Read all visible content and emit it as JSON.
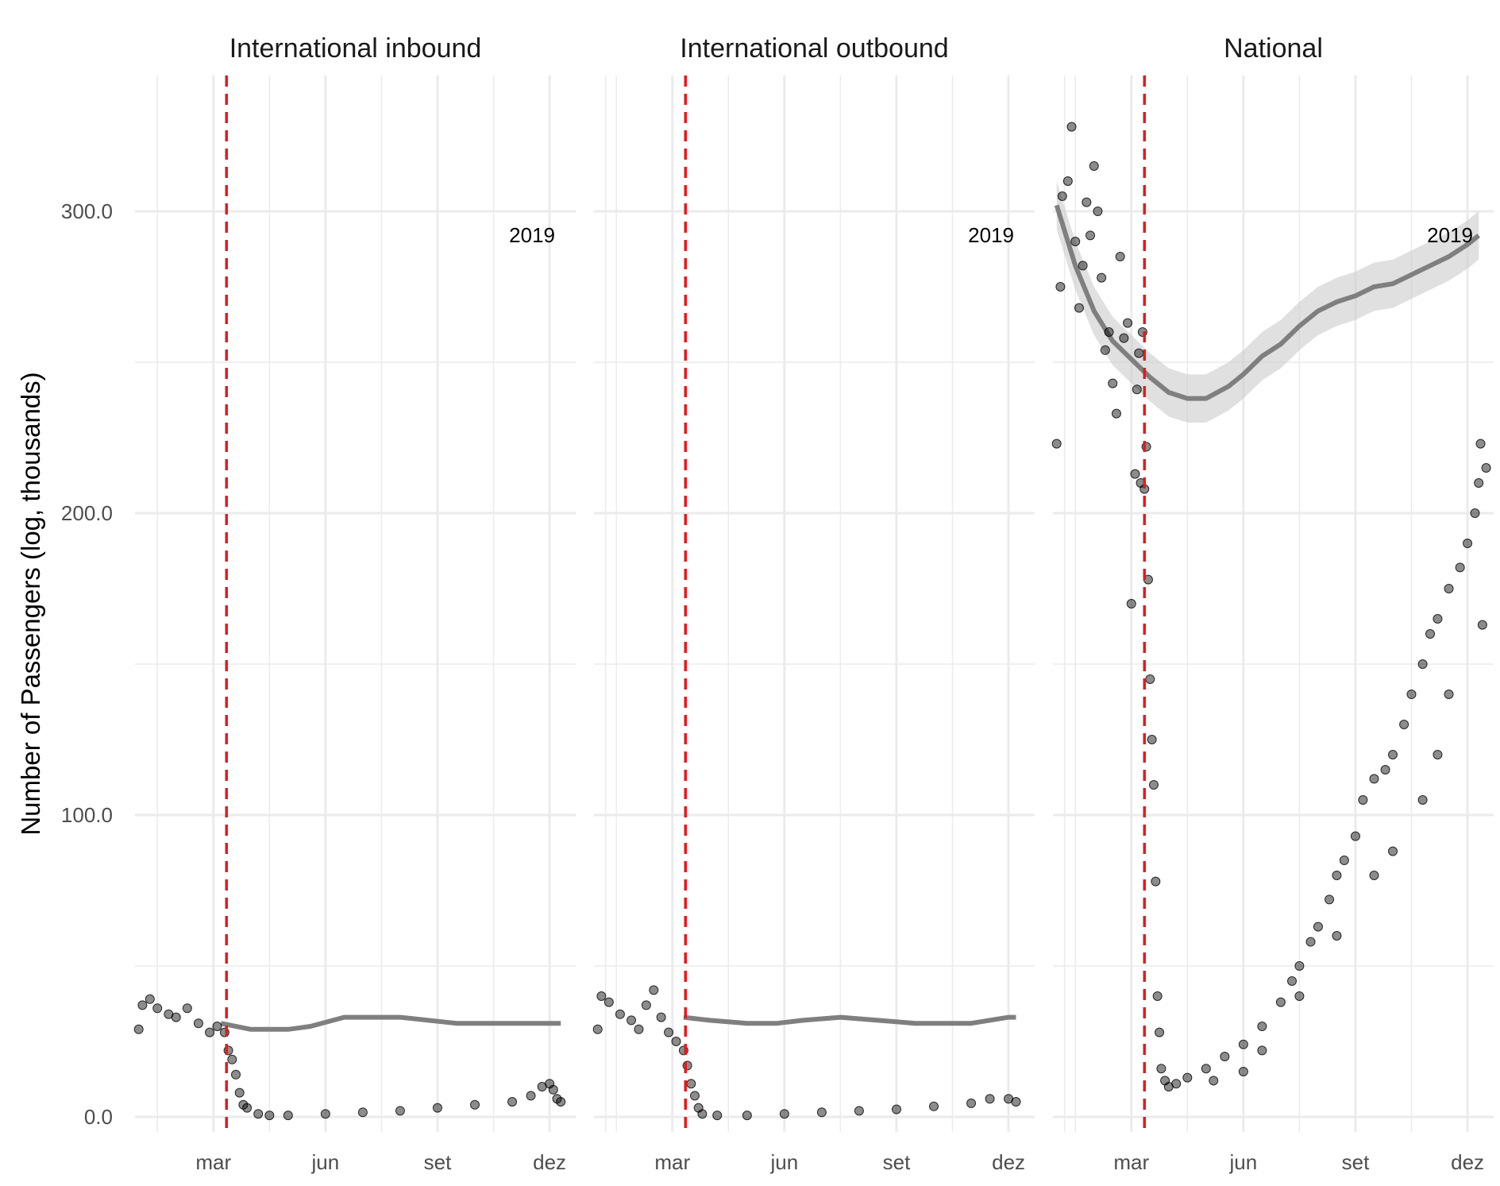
{
  "chart_data": {
    "type": "scatter",
    "ylabel": "Number of Passengers (log, thousands)",
    "xlabel": "",
    "y_ticks": [
      0,
      100,
      200,
      300
    ],
    "y_tick_labels": [
      "0.0",
      "100.0",
      "200.0",
      "300.0"
    ],
    "ylim": [
      -5,
      345
    ],
    "x_ticks": [
      2.0,
      5.0,
      8.0,
      11.0
    ],
    "x_tick_labels": [
      "mar",
      "jun",
      "set",
      "dez"
    ],
    "xlim": [
      -0.1,
      11.7
    ],
    "x_unit": "month of year (0 = start of January)",
    "reference_line": {
      "x": 2.35,
      "color": "#e41a1c",
      "style": "dashed"
    },
    "grid": true,
    "annotation_position": "top-right",
    "colors": {
      "points": "#000000",
      "smooth_2019": "#7f7f7f",
      "band": "#cccccc",
      "vline": "#e41a1c",
      "grid": "#ebebeb"
    },
    "panels": [
      {
        "title": "International inbound",
        "annotation": "2019",
        "smooth_2019": [
          [
            2.2,
            31
          ],
          [
            3,
            29
          ],
          [
            4,
            29
          ],
          [
            4.6,
            30
          ],
          [
            5.5,
            33
          ],
          [
            7,
            33
          ],
          [
            8.5,
            31
          ],
          [
            10,
            31
          ],
          [
            11.2,
            31
          ],
          [
            11.3,
            31
          ]
        ],
        "daily_2020": [
          [
            0,
            29
          ],
          [
            0.1,
            37
          ],
          [
            0.3,
            39
          ],
          [
            0.5,
            36
          ],
          [
            0.8,
            34
          ],
          [
            1.0,
            33
          ],
          [
            1.3,
            36
          ],
          [
            1.6,
            31
          ],
          [
            1.9,
            28
          ],
          [
            2.1,
            30
          ],
          [
            2.3,
            28
          ],
          [
            2.4,
            22
          ],
          [
            2.5,
            19
          ],
          [
            2.6,
            14
          ],
          [
            2.7,
            8
          ],
          [
            2.8,
            4
          ],
          [
            2.9,
            3
          ],
          [
            3.2,
            1
          ],
          [
            3.5,
            0.5
          ],
          [
            4,
            0.5
          ],
          [
            5,
            1
          ],
          [
            6,
            1.5
          ],
          [
            7,
            2
          ],
          [
            8,
            3
          ],
          [
            9,
            4
          ],
          [
            10,
            5
          ],
          [
            10.5,
            7
          ],
          [
            10.8,
            10
          ],
          [
            11,
            11
          ],
          [
            11.1,
            9
          ],
          [
            11.2,
            6
          ],
          [
            11.3,
            5
          ]
        ]
      },
      {
        "title": "International outbound",
        "annotation": "2019",
        "smooth_2019": [
          [
            2.3,
            33
          ],
          [
            3,
            32
          ],
          [
            4,
            31
          ],
          [
            4.8,
            31
          ],
          [
            5.5,
            32
          ],
          [
            6.5,
            33
          ],
          [
            7.5,
            32
          ],
          [
            8.5,
            31
          ],
          [
            10,
            31
          ],
          [
            11,
            33
          ],
          [
            11.2,
            33
          ]
        ],
        "daily_2020": [
          [
            0,
            29
          ],
          [
            0.1,
            40
          ],
          [
            0.3,
            38
          ],
          [
            0.6,
            34
          ],
          [
            0.9,
            32
          ],
          [
            1.1,
            29
          ],
          [
            1.3,
            37
          ],
          [
            1.5,
            42
          ],
          [
            1.7,
            33
          ],
          [
            1.9,
            28
          ],
          [
            2.1,
            25
          ],
          [
            2.3,
            22
          ],
          [
            2.4,
            17
          ],
          [
            2.5,
            11
          ],
          [
            2.6,
            7
          ],
          [
            2.7,
            3
          ],
          [
            2.8,
            1
          ],
          [
            3.2,
            0.5
          ],
          [
            4,
            0.5
          ],
          [
            5,
            1
          ],
          [
            6,
            1.5
          ],
          [
            7,
            2
          ],
          [
            8,
            2.5
          ],
          [
            9,
            3.5
          ],
          [
            10,
            4.5
          ],
          [
            10.5,
            6
          ],
          [
            11,
            6
          ],
          [
            11.2,
            5
          ]
        ]
      },
      {
        "title": "National",
        "annotation": "2019",
        "smooth_2019": [
          [
            0,
            302
          ],
          [
            0.5,
            282
          ],
          [
            1,
            267
          ],
          [
            1.5,
            257
          ],
          [
            2,
            251
          ],
          [
            2.5,
            245
          ],
          [
            3,
            240
          ],
          [
            3.5,
            238
          ],
          [
            4,
            238
          ],
          [
            4.6,
            242
          ],
          [
            5,
            246
          ],
          [
            5.5,
            252
          ],
          [
            6,
            256
          ],
          [
            6.5,
            262
          ],
          [
            7,
            267
          ],
          [
            7.5,
            270
          ],
          [
            8,
            272
          ],
          [
            8.5,
            275
          ],
          [
            9,
            276
          ],
          [
            9.5,
            279
          ],
          [
            10,
            282
          ],
          [
            10.5,
            285
          ],
          [
            11,
            289
          ],
          [
            11.3,
            292
          ]
        ],
        "daily_2020": [
          [
            0,
            223
          ],
          [
            0.1,
            275
          ],
          [
            0.15,
            305
          ],
          [
            0.3,
            310
          ],
          [
            0.4,
            328
          ],
          [
            0.5,
            290
          ],
          [
            0.6,
            268
          ],
          [
            0.7,
            282
          ],
          [
            0.8,
            303
          ],
          [
            0.9,
            292
          ],
          [
            1.0,
            315
          ],
          [
            1.1,
            300
          ],
          [
            1.2,
            278
          ],
          [
            1.3,
            254
          ],
          [
            1.4,
            260
          ],
          [
            1.5,
            243
          ],
          [
            1.6,
            233
          ],
          [
            1.7,
            285
          ],
          [
            1.8,
            258
          ],
          [
            1.9,
            263
          ],
          [
            2.0,
            170
          ],
          [
            2.1,
            213
          ],
          [
            2.15,
            241
          ],
          [
            2.2,
            253
          ],
          [
            2.25,
            210
          ],
          [
            2.3,
            260
          ],
          [
            2.35,
            208
          ],
          [
            2.4,
            222
          ],
          [
            2.45,
            178
          ],
          [
            2.5,
            145
          ],
          [
            2.55,
            125
          ],
          [
            2.6,
            110
          ],
          [
            2.65,
            78
          ],
          [
            2.7,
            40
          ],
          [
            2.75,
            28
          ],
          [
            2.8,
            16
          ],
          [
            2.9,
            12
          ],
          [
            3.0,
            10
          ],
          [
            3.2,
            11
          ],
          [
            3.5,
            13
          ],
          [
            4,
            16
          ],
          [
            4.5,
            20
          ],
          [
            5,
            24
          ],
          [
            5.5,
            30
          ],
          [
            6,
            38
          ],
          [
            6.3,
            45
          ],
          [
            6.5,
            50
          ],
          [
            6.8,
            58
          ],
          [
            7,
            63
          ],
          [
            7.3,
            72
          ],
          [
            7.5,
            80
          ],
          [
            7.7,
            85
          ],
          [
            8,
            93
          ],
          [
            8.2,
            105
          ],
          [
            8.5,
            112
          ],
          [
            8.8,
            115
          ],
          [
            9,
            120
          ],
          [
            9.3,
            130
          ],
          [
            9.5,
            140
          ],
          [
            9.8,
            150
          ],
          [
            10,
            160
          ],
          [
            10.2,
            165
          ],
          [
            10.5,
            175
          ],
          [
            10.8,
            182
          ],
          [
            11,
            190
          ],
          [
            11.2,
            200
          ],
          [
            11.3,
            210
          ],
          [
            11.35,
            223
          ],
          [
            11.4,
            163
          ],
          [
            11.5,
            215
          ],
          [
            10.5,
            140
          ],
          [
            10.2,
            120
          ],
          [
            9.8,
            105
          ],
          [
            9,
            88
          ],
          [
            8.5,
            80
          ],
          [
            7.5,
            60
          ],
          [
            6.5,
            40
          ],
          [
            5.5,
            22
          ],
          [
            5,
            15
          ],
          [
            4.2,
            12
          ]
        ]
      }
    ]
  }
}
